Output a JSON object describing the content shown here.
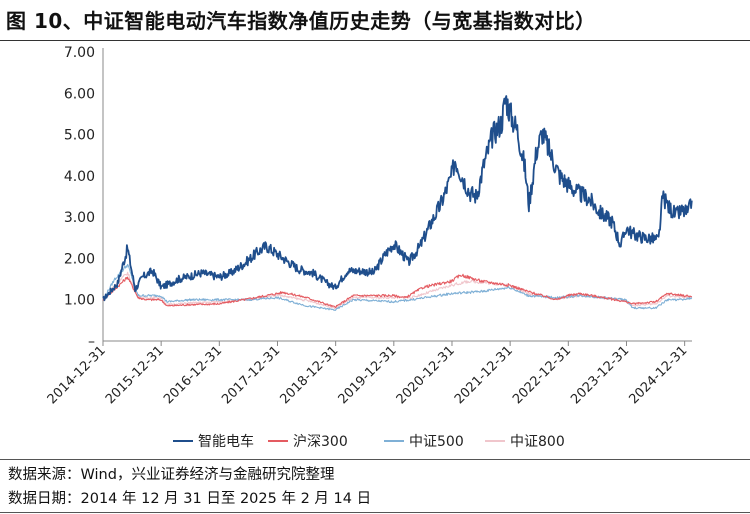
{
  "title": "图 10、中证智能电动汽车指数净值历史走势（与宽基指数对比）",
  "footer": {
    "source": "数据来源：Wind，兴业证券经济与金融研究院整理",
    "date_range": "数据日期：2014 年 12 月 31 日至 2025 年 2 月 14 日"
  },
  "chart_data": {
    "type": "line",
    "title": "",
    "xlabel": "",
    "ylabel": "",
    "ylim": [
      0,
      7
    ],
    "y_ticks": [
      "–",
      "1.00",
      "2.00",
      "3.00",
      "4.00",
      "5.00",
      "6.00",
      "7.00"
    ],
    "categories": [
      "2014-12-31",
      "2015-12-31",
      "2016-12-31",
      "2017-12-31",
      "2018-12-31",
      "2019-12-31",
      "2020-12-31",
      "2021-12-31",
      "2022-12-31",
      "2023-12-31",
      "2024-12-31"
    ],
    "x_start_year": 2014.9973,
    "x_end_year": 2025.1234,
    "series": [
      {
        "name": "智能电车",
        "color": "#1f4e8c",
        "width": 1.8,
        "points": [
          [
            2014.997,
            1.0
          ],
          [
            2015.25,
            1.4
          ],
          [
            2015.42,
            2.25
          ],
          [
            2015.55,
            1.25
          ],
          [
            2015.68,
            1.55
          ],
          [
            2015.85,
            1.7
          ],
          [
            2016.0,
            1.3
          ],
          [
            2016.3,
            1.5
          ],
          [
            2016.7,
            1.65
          ],
          [
            2016.99,
            1.55
          ],
          [
            2017.2,
            1.65
          ],
          [
            2017.45,
            1.9
          ],
          [
            2017.65,
            2.15
          ],
          [
            2017.8,
            2.3
          ],
          [
            2017.95,
            2.15
          ],
          [
            2018.1,
            2.0
          ],
          [
            2018.35,
            1.75
          ],
          [
            2018.6,
            1.65
          ],
          [
            2018.85,
            1.4
          ],
          [
            2018.99,
            1.3
          ],
          [
            2019.2,
            1.7
          ],
          [
            2019.45,
            1.7
          ],
          [
            2019.65,
            1.65
          ],
          [
            2019.85,
            2.1
          ],
          [
            2019.99,
            2.35
          ],
          [
            2020.15,
            2.1
          ],
          [
            2020.25,
            1.9
          ],
          [
            2020.45,
            2.3
          ],
          [
            2020.65,
            2.9
          ],
          [
            2020.8,
            3.3
          ],
          [
            2020.99,
            4.0
          ],
          [
            2021.05,
            4.4
          ],
          [
            2021.15,
            4.05
          ],
          [
            2021.3,
            3.6
          ],
          [
            2021.42,
            3.5
          ],
          [
            2021.55,
            4.3
          ],
          [
            2021.7,
            5.0
          ],
          [
            2021.85,
            5.3
          ],
          [
            2021.92,
            5.9
          ],
          [
            2022.0,
            5.5
          ],
          [
            2022.12,
            5.1
          ],
          [
            2022.25,
            4.2
          ],
          [
            2022.32,
            3.3
          ],
          [
            2022.45,
            4.6
          ],
          [
            2022.55,
            5.05
          ],
          [
            2022.7,
            4.5
          ],
          [
            2022.85,
            4.0
          ],
          [
            2022.99,
            3.8
          ],
          [
            2023.15,
            3.6
          ],
          [
            2023.35,
            3.45
          ],
          [
            2023.55,
            3.1
          ],
          [
            2023.75,
            2.9
          ],
          [
            2023.9,
            2.3
          ],
          [
            2023.99,
            2.75
          ],
          [
            2024.1,
            2.6
          ],
          [
            2024.3,
            2.5
          ],
          [
            2024.55,
            2.45
          ],
          [
            2024.62,
            3.5
          ],
          [
            2024.72,
            3.25
          ],
          [
            2024.85,
            3.05
          ],
          [
            2024.95,
            3.15
          ],
          [
            2025.06,
            3.1
          ],
          [
            2025.12,
            3.4
          ]
        ]
      },
      {
        "name": "沪深300",
        "color": "#e45b61",
        "width": 1.1,
        "points": [
          [
            2014.997,
            1.0
          ],
          [
            2015.2,
            1.25
          ],
          [
            2015.42,
            1.55
          ],
          [
            2015.6,
            1.05
          ],
          [
            2015.75,
            1.0
          ],
          [
            2015.99,
            1.0
          ],
          [
            2016.1,
            0.85
          ],
          [
            2016.5,
            0.88
          ],
          [
            2016.99,
            0.9
          ],
          [
            2017.5,
            1.02
          ],
          [
            2017.99,
            1.15
          ],
          [
            2018.1,
            1.18
          ],
          [
            2018.5,
            1.05
          ],
          [
            2018.99,
            0.82
          ],
          [
            2019.3,
            1.1
          ],
          [
            2019.99,
            1.1
          ],
          [
            2020.2,
            1.05
          ],
          [
            2020.5,
            1.3
          ],
          [
            2020.99,
            1.45
          ],
          [
            2021.15,
            1.6
          ],
          [
            2021.5,
            1.45
          ],
          [
            2021.99,
            1.35
          ],
          [
            2022.3,
            1.2
          ],
          [
            2022.8,
            1.0
          ],
          [
            2022.99,
            1.1
          ],
          [
            2023.2,
            1.15
          ],
          [
            2023.6,
            1.05
          ],
          [
            2023.99,
            0.95
          ],
          [
            2024.1,
            0.9
          ],
          [
            2024.5,
            0.95
          ],
          [
            2024.7,
            1.15
          ],
          [
            2024.99,
            1.1
          ],
          [
            2025.12,
            1.08
          ]
        ]
      },
      {
        "name": "中证500",
        "color": "#7fb0d6",
        "width": 1.1,
        "points": [
          [
            2014.997,
            1.0
          ],
          [
            2015.2,
            1.5
          ],
          [
            2015.42,
            1.85
          ],
          [
            2015.6,
            1.1
          ],
          [
            2015.99,
            1.1
          ],
          [
            2016.1,
            0.95
          ],
          [
            2016.5,
            1.0
          ],
          [
            2016.99,
            1.0
          ],
          [
            2017.5,
            1.0
          ],
          [
            2017.99,
            1.05
          ],
          [
            2018.5,
            0.85
          ],
          [
            2018.99,
            0.75
          ],
          [
            2019.3,
            1.0
          ],
          [
            2019.99,
            0.95
          ],
          [
            2020.3,
            1.0
          ],
          [
            2020.99,
            1.15
          ],
          [
            2021.5,
            1.2
          ],
          [
            2021.99,
            1.3
          ],
          [
            2022.3,
            1.1
          ],
          [
            2022.8,
            1.05
          ],
          [
            2023.2,
            1.1
          ],
          [
            2023.6,
            1.05
          ],
          [
            2023.99,
            1.0
          ],
          [
            2024.1,
            0.8
          ],
          [
            2024.5,
            0.8
          ],
          [
            2024.7,
            1.0
          ],
          [
            2024.99,
            1.0
          ],
          [
            2025.12,
            1.05
          ]
        ]
      },
      {
        "name": "中证800",
        "color": "#f0c6cc",
        "width": 1.1,
        "points": [
          [
            2014.997,
            1.0
          ],
          [
            2015.2,
            1.35
          ],
          [
            2015.42,
            1.65
          ],
          [
            2015.6,
            1.05
          ],
          [
            2015.99,
            1.05
          ],
          [
            2016.1,
            0.88
          ],
          [
            2016.5,
            0.92
          ],
          [
            2016.99,
            0.95
          ],
          [
            2017.5,
            1.0
          ],
          [
            2017.99,
            1.12
          ],
          [
            2018.5,
            0.98
          ],
          [
            2018.99,
            0.8
          ],
          [
            2019.3,
            1.05
          ],
          [
            2019.99,
            1.05
          ],
          [
            2020.3,
            1.05
          ],
          [
            2020.99,
            1.35
          ],
          [
            2021.3,
            1.45
          ],
          [
            2021.99,
            1.35
          ],
          [
            2022.3,
            1.15
          ],
          [
            2022.8,
            1.02
          ],
          [
            2023.2,
            1.1
          ],
          [
            2023.6,
            1.05
          ],
          [
            2023.99,
            0.96
          ],
          [
            2024.1,
            0.86
          ],
          [
            2024.5,
            0.9
          ],
          [
            2024.7,
            1.1
          ],
          [
            2024.99,
            1.06
          ],
          [
            2025.12,
            1.06
          ]
        ]
      }
    ]
  }
}
